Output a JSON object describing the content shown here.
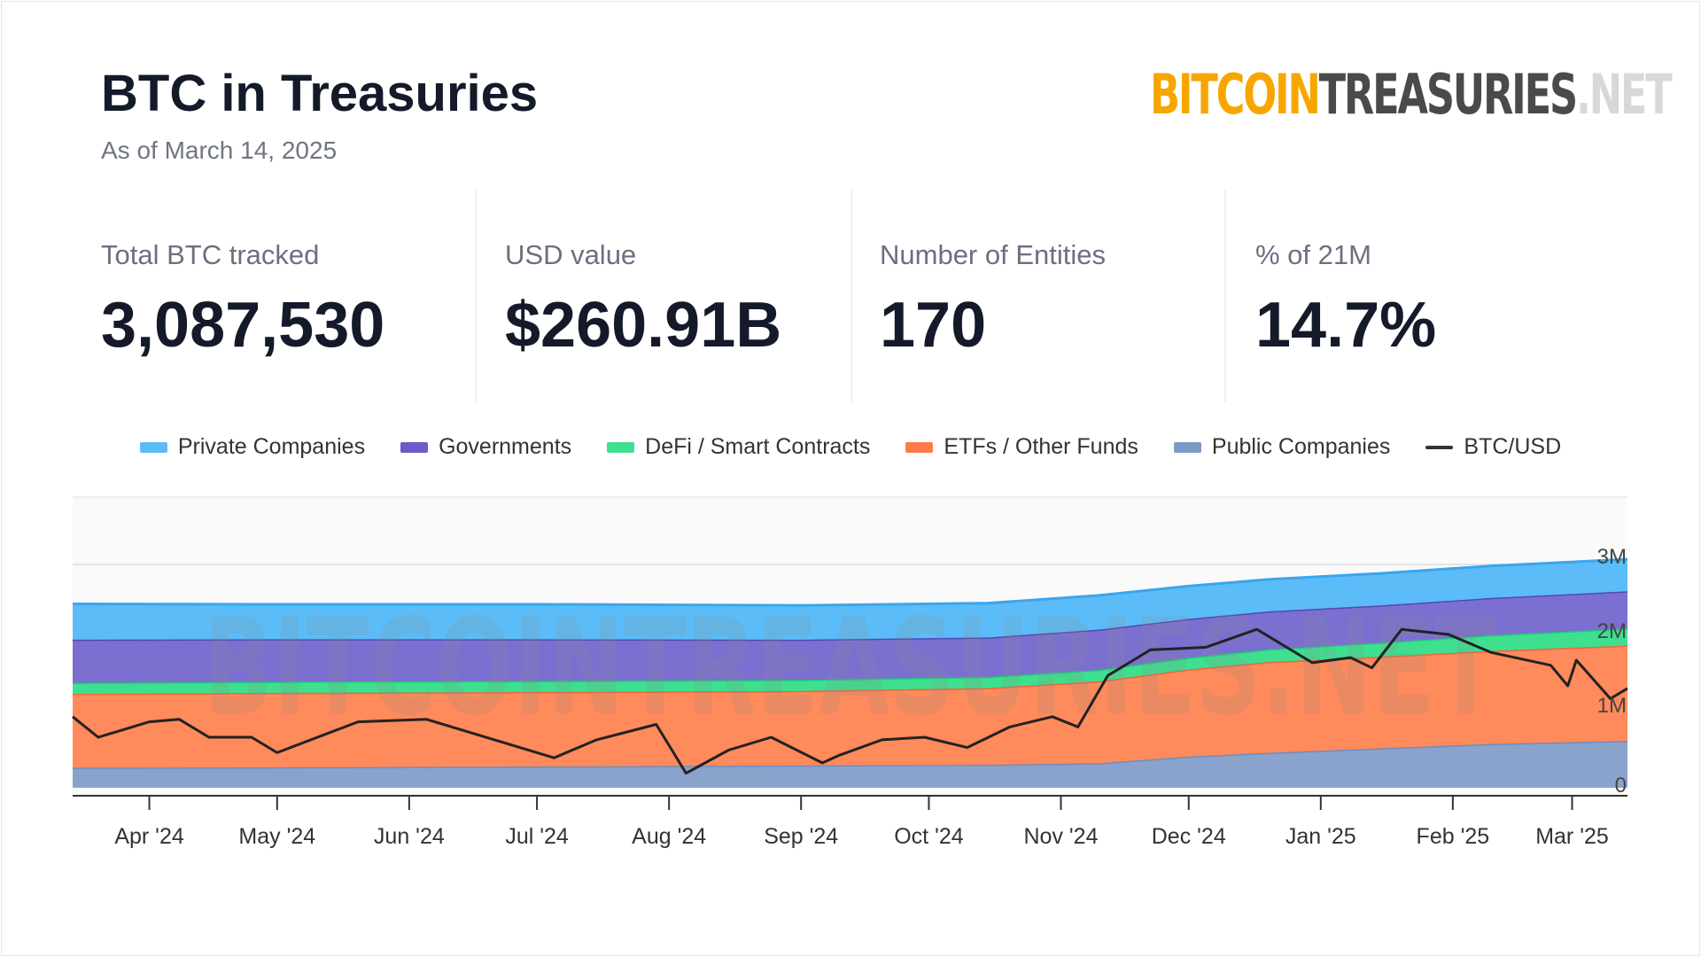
{
  "header": {
    "title": "BTC in Treasuries",
    "subtitle": "As of March 14, 2025",
    "logo": {
      "part1": "BITCOIN",
      "part2": "TREASURIES",
      "part3": ".NET"
    }
  },
  "stats": [
    {
      "label": "Total BTC tracked",
      "value": "3,087,530"
    },
    {
      "label": "USD value",
      "value": "$260.91B"
    },
    {
      "label": "Number of Entities",
      "value": "170"
    },
    {
      "label": "% of 21M",
      "value": "14.7%"
    }
  ],
  "chart_data": {
    "type": "area",
    "stacked": true,
    "watermark": "BITCOINTREASURIES.NET",
    "legend_position": "top",
    "x_tick_labels": [
      "Apr '24",
      "May '24",
      "Jun '24",
      "Jul '24",
      "Aug '24",
      "Sep '24",
      "Oct '24",
      "Nov '24",
      "Dec '24",
      "Jan '25",
      "Feb '25",
      "Mar '25"
    ],
    "x_tick_dates": [
      "2024-04-01",
      "2024-05-01",
      "2024-06-01",
      "2024-07-01",
      "2024-08-01",
      "2024-09-01",
      "2024-10-01",
      "2024-11-01",
      "2024-12-01",
      "2025-01-01",
      "2025-02-01",
      "2025-03-01"
    ],
    "x_range": [
      "2024-03-14",
      "2025-03-14"
    ],
    "y_tick_labels": [
      "0",
      "1M",
      "2M",
      "3M"
    ],
    "y_ticks": [
      0,
      1000000,
      2000000,
      3000000
    ],
    "ylim": [
      0,
      3500000
    ],
    "dates": [
      "2024-03-14",
      "2024-05-01",
      "2024-07-01",
      "2024-09-01",
      "2024-10-15",
      "2024-11-10",
      "2024-12-01",
      "2024-12-20",
      "2025-01-15",
      "2025-02-10",
      "2025-03-14"
    ],
    "series": [
      {
        "name": "Public Companies",
        "color": "#8aa3cc",
        "line": "#6f8cc0",
        "values": [
          270000,
          275000,
          285000,
          300000,
          310000,
          330000,
          420000,
          470000,
          530000,
          590000,
          630000
        ]
      },
      {
        "name": "ETFs / Other Funds",
        "color": "#ff8a5b",
        "line": "#f2643a",
        "values": [
          990000,
          1000000,
          1000000,
          1000000,
          1030000,
          1100000,
          1170000,
          1220000,
          1230000,
          1250000,
          1280000
        ]
      },
      {
        "name": "DeFi / Smart Contracts",
        "color": "#3ee08f",
        "line": "#1fca78",
        "values": [
          150000,
          150000,
          150000,
          150000,
          150000,
          155000,
          160000,
          170000,
          190000,
          210000,
          230000
        ]
      },
      {
        "name": "Governments",
        "color": "#7b6fd0",
        "line": "#5646b8",
        "values": [
          580000,
          570000,
          560000,
          540000,
          530000,
          540000,
          520000,
          510000,
          500000,
          500000,
          500000
        ]
      },
      {
        "name": "Private Companies",
        "color": "#5bbcf7",
        "line": "#3aa5ee",
        "values": [
          480000,
          470000,
          470000,
          460000,
          460000,
          460000,
          440000,
          430000,
          430000,
          430000,
          430000
        ]
      }
    ],
    "price_series": {
      "name": "BTC/USD",
      "color": "#222222",
      "dates": [
        "2024-03-14",
        "2024-03-20",
        "2024-04-01",
        "2024-04-08",
        "2024-04-15",
        "2024-04-25",
        "2024-05-01",
        "2024-05-20",
        "2024-06-05",
        "2024-06-15",
        "2024-06-25",
        "2024-07-05",
        "2024-07-15",
        "2024-07-29",
        "2024-08-05",
        "2024-08-15",
        "2024-08-25",
        "2024-09-06",
        "2024-09-10",
        "2024-09-20",
        "2024-09-30",
        "2024-10-10",
        "2024-10-20",
        "2024-10-30",
        "2024-11-05",
        "2024-11-12",
        "2024-11-22",
        "2024-12-05",
        "2024-12-17",
        "2024-12-30",
        "2025-01-08",
        "2025-01-13",
        "2025-01-20",
        "2025-01-31",
        "2025-02-10",
        "2025-02-24",
        "2025-02-28",
        "2025-03-02",
        "2025-03-10",
        "2025-03-14"
      ],
      "values": [
        72000,
        64000,
        70000,
        71000,
        64000,
        64000,
        58000,
        70000,
        71000,
        66000,
        61000,
        56000,
        63000,
        69000,
        50000,
        59000,
        64000,
        54000,
        57000,
        63000,
        64000,
        60000,
        68000,
        72000,
        68000,
        88000,
        98000,
        99000,
        106000,
        93000,
        95000,
        91000,
        106000,
        104000,
        97000,
        92000,
        84000,
        94000,
        79000,
        83000
      ]
    }
  },
  "legend": [
    "Private Companies",
    "Governments",
    "DeFi / Smart Contracts",
    "ETFs / Other Funds",
    "Public Companies",
    "BTC/USD"
  ]
}
